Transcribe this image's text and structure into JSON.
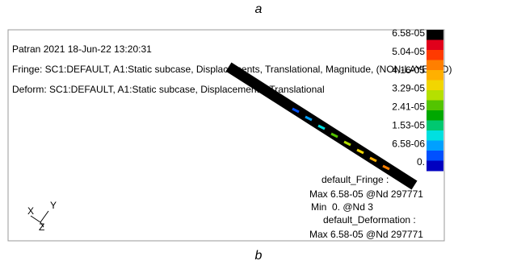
{
  "caption_top": "a",
  "caption_bottom": "b",
  "header": {
    "line1": "Patran 2021 18-Jun-22 13:20:31",
    "line2": "Fringe: SC1:DEFAULT, A1:Static subcase, Displacements, Translational, Magnitude, (NON-LAYERED)",
    "line3": "Deform: SC1:DEFAULT, A1:Static subcase, Displacements, Translational"
  },
  "colorbar": {
    "labels": [
      "6.58-05",
      "5.04-05",
      "4.16-05",
      "3.29-05",
      "2.41-05",
      "1.53-05",
      "6.58-06",
      "0."
    ],
    "colors": [
      "#000000",
      "#e0001b",
      "#ff3a00",
      "#ff7f00",
      "#ffb000",
      "#f2d600",
      "#b5e000",
      "#53c400",
      "#00a800",
      "#00c870",
      "#00e0e0",
      "#00a0ff",
      "#0050ff",
      "#0000c0"
    ]
  },
  "legend": [
    "default_Fringe :",
    "Max 6.58-05 @Nd 297771",
    "Min  0. @Nd 3",
    "default_Deformation :",
    "Max 6.58-05 @Nd 297771"
  ],
  "triad": [
    "X",
    "Y",
    "Z"
  ]
}
